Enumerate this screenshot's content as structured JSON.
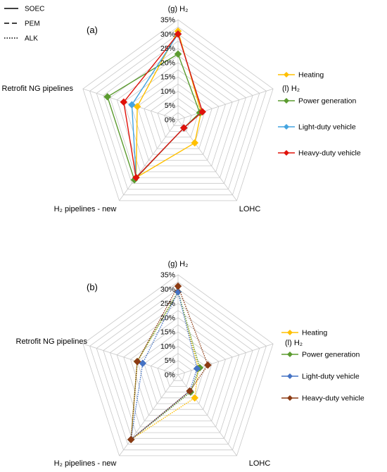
{
  "style_legend": [
    {
      "label": "SOEC",
      "dash": "solid"
    },
    {
      "label": "PEM",
      "dash": "dashed"
    },
    {
      "label": "ALK",
      "dash": "dotted"
    }
  ],
  "chart_data": [
    {
      "type": "radar",
      "panel_label": "(a)",
      "axes": [
        "(g) H₂",
        "(l) H₂",
        "LOHC",
        "H₂ pipelines - new",
        "Retrofit NG pipelines"
      ],
      "ticks": [
        "0%",
        "5%",
        "10%",
        "15%",
        "20%",
        "25%",
        "30%",
        "35%"
      ],
      "rmax": 35,
      "legend": [
        "Heating",
        "Power generation",
        "Light-duty vehicle",
        "Heavy-duty vehicle"
      ],
      "series": [
        {
          "name": "Heating",
          "color": "#ffc000",
          "values": [
            31,
            8.5,
            10,
            25,
            15
          ]
        },
        {
          "name": "Power generation",
          "color": "#5b9b2f",
          "values": [
            23,
            8,
            3.5,
            26,
            26
          ]
        },
        {
          "name": "Light-duty vehicle",
          "color": "#44a4e0",
          "values": [
            30,
            9,
            3.5,
            25,
            17
          ]
        },
        {
          "name": "Heavy-duty vehicle",
          "color": "#e0120a",
          "values": [
            30,
            9,
            3.5,
            25,
            20
          ]
        }
      ]
    },
    {
      "type": "radar",
      "panel_label": "(b)",
      "axes": [
        "(g) H₂",
        "(l) H₂",
        "LOHC",
        "H₂ pipelines - new",
        "Retrofit NG pipelines"
      ],
      "ticks": [
        "0%",
        "5%",
        "10%",
        "15%",
        "20%",
        "25%",
        "30%",
        "35%"
      ],
      "rmax": 35,
      "legend": [
        "Heating",
        "Power generation",
        "Light-duty vehicle",
        "Heavy-duty vehicle"
      ],
      "series": [
        {
          "name": "Heating",
          "color": "#ffc000",
          "values": [
            29,
            7.5,
            10,
            28,
            15
          ]
        },
        {
          "name": "Power generation",
          "color": "#5b9b2f",
          "values": [
            29,
            8,
            7.5,
            28,
            15
          ]
        },
        {
          "name": "Light-duty vehicle",
          "color": "#4472c4",
          "values": [
            29,
            7,
            7,
            28,
            13
          ]
        },
        {
          "name": "Heavy-duty vehicle",
          "color": "#8b3a12",
          "values": [
            31,
            11,
            7,
            28,
            15
          ]
        }
      ]
    }
  ]
}
